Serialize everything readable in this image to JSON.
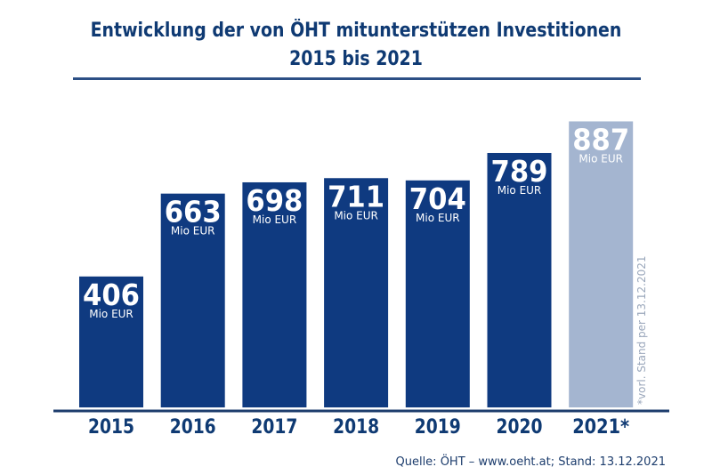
{
  "chart_data": {
    "type": "bar",
    "title": "Entwicklung der von ÖHT mitunterstützen Investitionen",
    "subtitle": "2015 bis 2021",
    "categories": [
      "2015",
      "2016",
      "2017",
      "2018",
      "2019",
      "2020",
      "2021*"
    ],
    "values": [
      406,
      663,
      698,
      711,
      704,
      789,
      887
    ],
    "unit_label": "Mio EUR",
    "xlabel": "",
    "ylabel": "",
    "ylim": [
      0,
      887
    ],
    "grid": false,
    "legend": "none",
    "highlight": {
      "category": "2021*",
      "note": "preliminary"
    },
    "annotations": [
      "*vorl. Stand per 13.12.2021"
    ],
    "colors": {
      "bar": "#0f3a80",
      "bar_preliminary": "#a4b5d0",
      "text": "#0f3a73",
      "axis": "#1d3d6d"
    }
  },
  "source": "Quelle: ÖHT – www.oeht.at; Stand: 13.12.2021"
}
